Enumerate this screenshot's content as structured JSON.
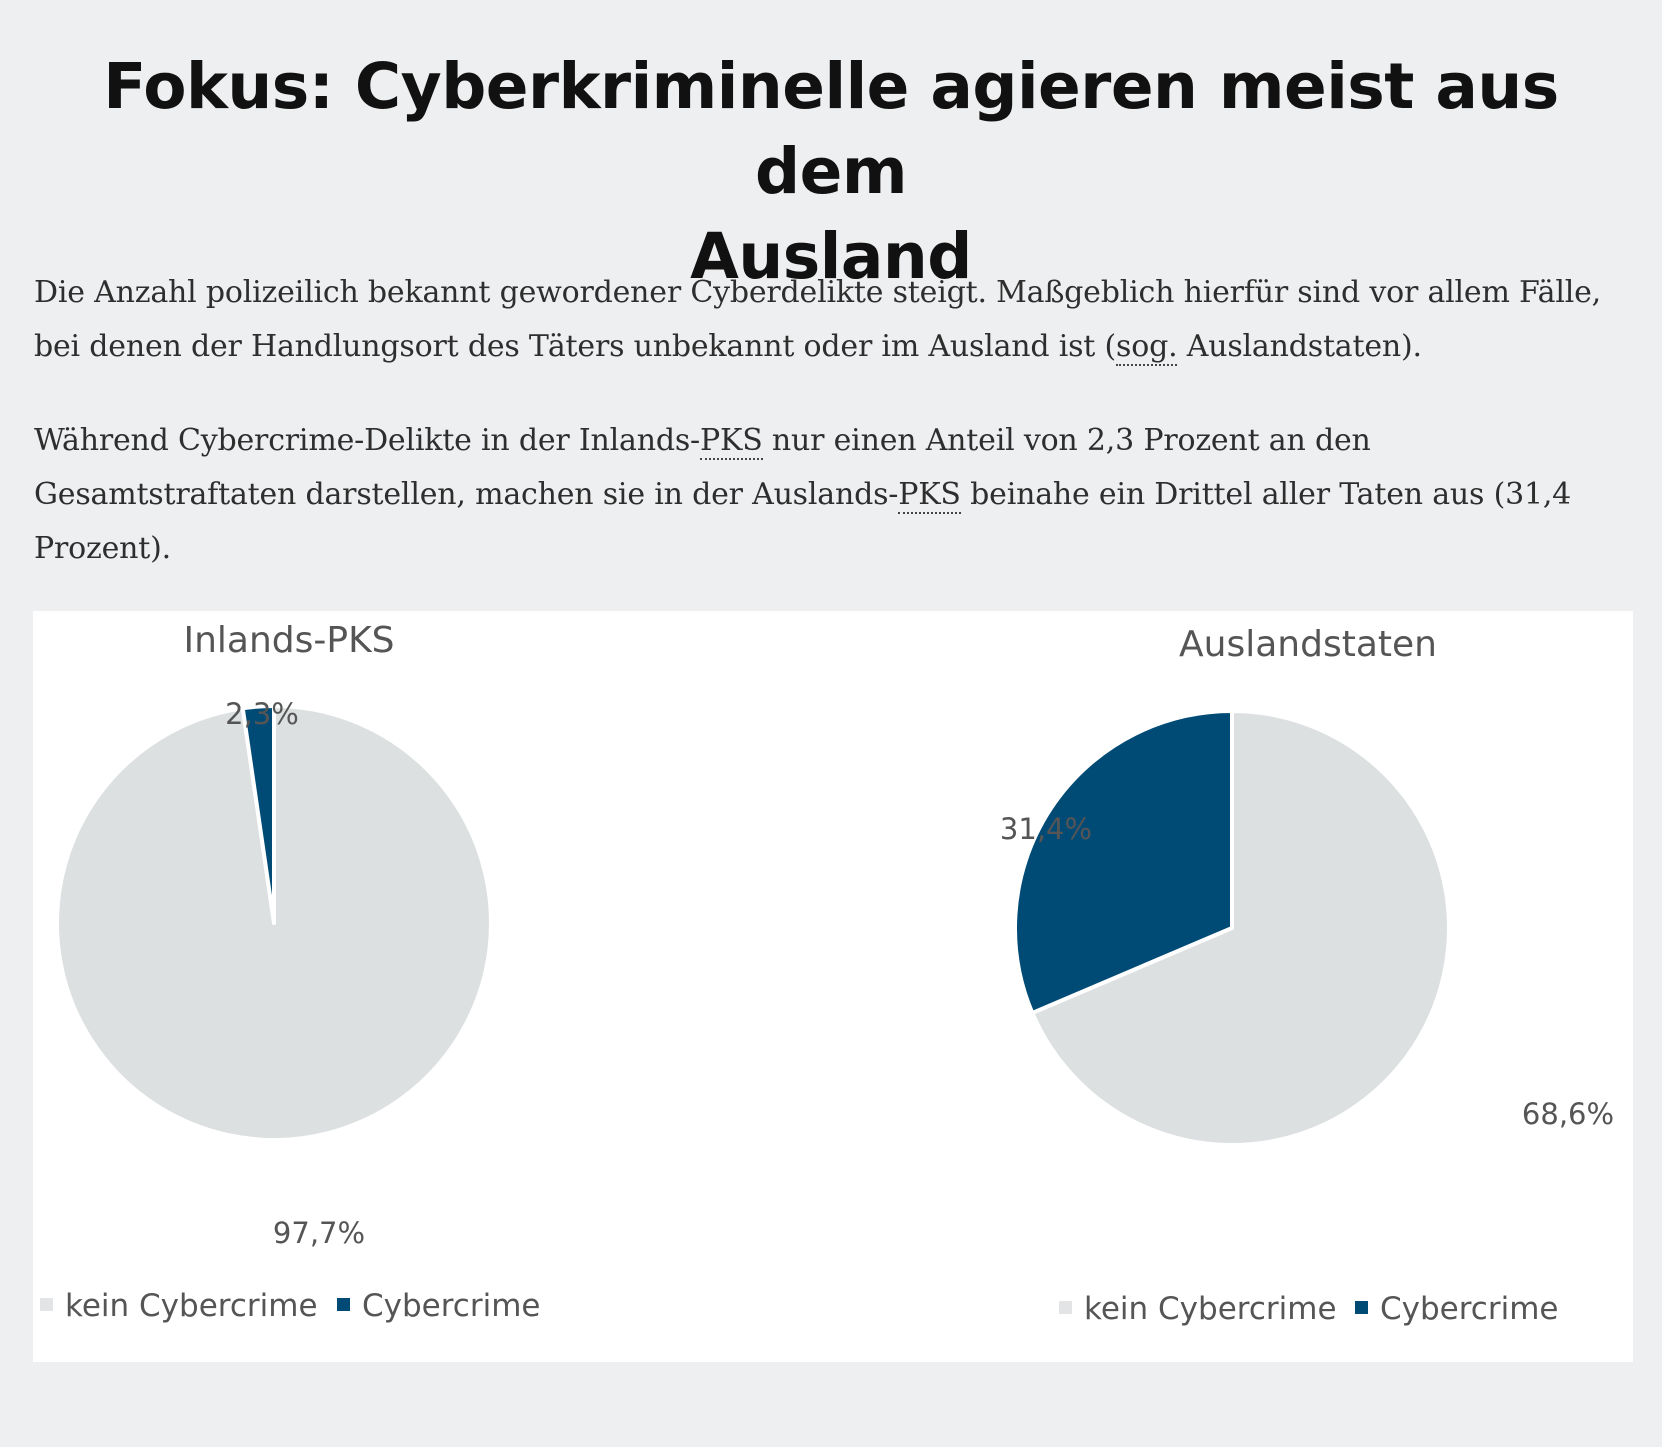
{
  "heading": {
    "line1": "Fokus: Cyberkriminelle agieren meist aus dem",
    "line2": "Ausland"
  },
  "paragraph1": {
    "text_before": "Die Anzahl polizeilich bekannt gewordener Cyberdelikte steigt. Maßgeblich hierfür sind vor allem Fälle, bei denen der Handlungsort des Täters unbekannt oder im Ausland ist (",
    "abbr": "sog.",
    "text_after": " Auslandstaten)."
  },
  "paragraph2": {
    "text_1": "Während Cybercrime-Delikte in der Inlands-",
    "abbr_1": "PKS",
    "text_2": " nur einen Anteil von 2,3 Prozent an den Gesamtstraftaten darstellen, machen sie in der Auslands-",
    "abbr_2": "PKS",
    "text_3": " beinahe ein Drittel aller Taten aus (31,4 Prozent)."
  },
  "colors": {
    "kein_cybercrime": "#dde0e1",
    "cybercrime": "#004b76",
    "legend_kein_marker": "#e3e4e5"
  },
  "chart_data": [
    {
      "type": "pie",
      "title": "Inlands-PKS",
      "slices": [
        {
          "name": "kein Cybercrime",
          "value": 97.7,
          "label": "97,7%"
        },
        {
          "name": "Cybercrime",
          "value": 2.3,
          "label": "2,3%"
        }
      ],
      "legend": [
        "kein Cybercrime",
        "Cybercrime"
      ],
      "legend_position": "bottom"
    },
    {
      "type": "pie",
      "title": "Auslandstaten",
      "slices": [
        {
          "name": "kein Cybercrime",
          "value": 68.6,
          "label": "68,6%"
        },
        {
          "name": "Cybercrime",
          "value": 31.4,
          "label": "31,4%"
        }
      ],
      "legend": [
        "kein Cybercrime",
        "Cybercrime"
      ],
      "legend_position": "bottom"
    }
  ]
}
